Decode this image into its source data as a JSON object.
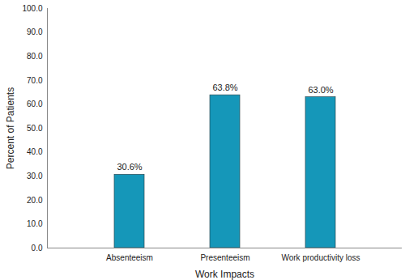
{
  "chart_data": {
    "type": "bar",
    "categories": [
      "Absenteeism",
      "Presenteeism",
      "Work productivity loss"
    ],
    "values": [
      30.6,
      63.8,
      63.0
    ],
    "value_labels": [
      "30.6%",
      "63.8%",
      "63.0%"
    ],
    "data_labels": true,
    "color": "#1597b9",
    "x_label": "Work Impacts",
    "y_label": "Percent of Patients",
    "ylim": [
      0,
      100
    ],
    "yticks": [
      {
        "value": 0,
        "label": "0.0"
      },
      {
        "value": 10,
        "label": "10.0"
      },
      {
        "value": 20,
        "label": "20.0"
      },
      {
        "value": 30,
        "label": "30.0"
      },
      {
        "value": 40,
        "label": "40.0"
      },
      {
        "value": 50,
        "label": "50.0"
      },
      {
        "value": 60,
        "label": "60.0"
      },
      {
        "value": 70,
        "label": "70.0"
      },
      {
        "value": 80,
        "label": "80.0"
      },
      {
        "value": 90,
        "label": "90.0"
      },
      {
        "value": 100,
        "label": "100.0"
      }
    ],
    "grid": false
  }
}
